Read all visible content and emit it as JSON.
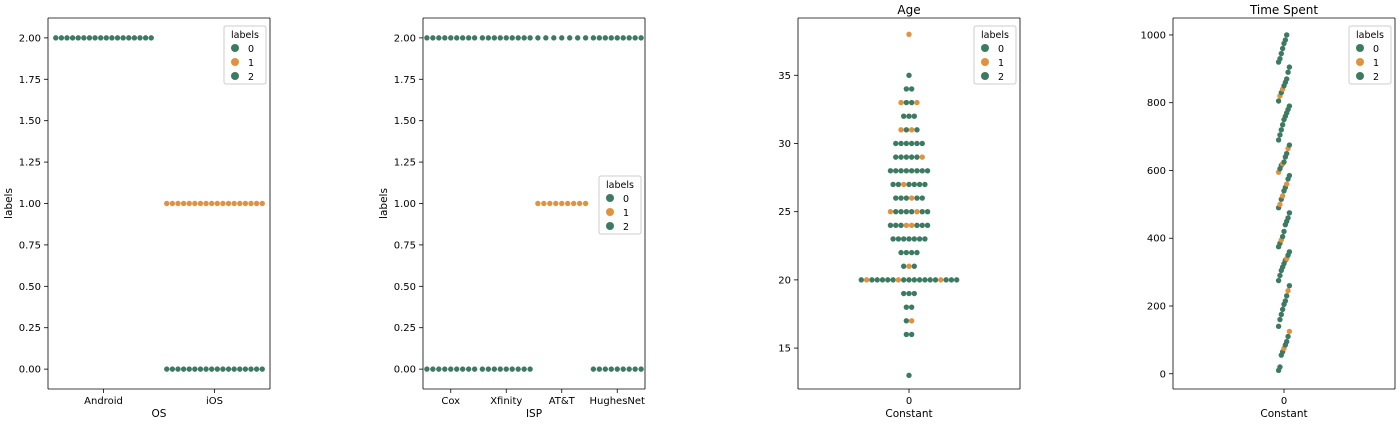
{
  "colors": {
    "label_0": "#3d7a62",
    "label_1": "#e0923e",
    "label_2": "#3d7a62",
    "axis": "#000000",
    "frame_border": "#cccccc"
  },
  "chart_data": [
    {
      "type": "scatter",
      "subtype": "swarm",
      "title": "",
      "xlabel": "OS",
      "ylabel": "labels",
      "categories": [
        "Android",
        "iOS"
      ],
      "yticks": [
        "0.00",
        "0.25",
        "0.50",
        "0.75",
        "1.00",
        "1.25",
        "1.50",
        "1.75",
        "2.00"
      ],
      "ylim": [
        -0.12,
        2.12
      ],
      "legend": {
        "title": "labels",
        "placement": "top-right",
        "entries": [
          "0",
          "1",
          "2"
        ]
      },
      "groups": [
        {
          "category": "Android",
          "label": "2",
          "y": 2.0,
          "count": 18
        },
        {
          "category": "iOS",
          "label": "1",
          "y": 1.0,
          "count": 18
        },
        {
          "category": "iOS",
          "label": "0",
          "y": 0.0,
          "count": 18
        }
      ]
    },
    {
      "type": "scatter",
      "subtype": "swarm",
      "title": "",
      "xlabel": "ISP",
      "ylabel": "labels",
      "categories": [
        "Cox",
        "Xfinity",
        "AT&T",
        "HughesNet"
      ],
      "yticks": [
        "0.00",
        "0.25",
        "0.50",
        "0.75",
        "1.00",
        "1.25",
        "1.50",
        "1.75",
        "2.00"
      ],
      "ylim": [
        -0.12,
        2.12
      ],
      "legend": {
        "title": "labels",
        "placement": "center-right",
        "entries": [
          "0",
          "1",
          "2"
        ]
      },
      "groups": [
        {
          "category": "Cox",
          "label": "2",
          "y": 2.0,
          "count": 9
        },
        {
          "category": "Cox",
          "label": "0",
          "y": 0.0,
          "count": 9
        },
        {
          "category": "Xfinity",
          "label": "2",
          "y": 2.0,
          "count": 9
        },
        {
          "category": "Xfinity",
          "label": "0",
          "y": 0.0,
          "count": 9
        },
        {
          "category": "AT&T",
          "label": "2",
          "y": 2.0,
          "count": 7
        },
        {
          "category": "AT&T",
          "label": "1",
          "y": 1.0,
          "count": 9
        },
        {
          "category": "HughesNet",
          "label": "2",
          "y": 2.0,
          "count": 9
        },
        {
          "category": "HughesNet",
          "label": "0",
          "y": 0.0,
          "count": 9
        }
      ]
    },
    {
      "type": "scatter",
      "subtype": "swarm",
      "title": "Age",
      "xlabel": "Constant",
      "ylabel": "",
      "categories": [
        "0"
      ],
      "yticks": [
        15,
        20,
        25,
        30,
        35
      ],
      "ylim": [
        12,
        39.2
      ],
      "legend": {
        "title": "labels",
        "placement": "top-right",
        "entries": [
          "0",
          "1",
          "2"
        ]
      },
      "rows": [
        {
          "y": 38,
          "labels": [
            "1"
          ]
        },
        {
          "y": 35,
          "labels": [
            "2"
          ]
        },
        {
          "y": 34,
          "labels": [
            "2",
            "2"
          ]
        },
        {
          "y": 33,
          "labels": [
            "1",
            "2",
            "2",
            "1"
          ]
        },
        {
          "y": 32,
          "labels": [
            "2",
            "2",
            "2"
          ]
        },
        {
          "y": 31,
          "labels": [
            "1",
            "2",
            "1",
            "2"
          ]
        },
        {
          "y": 30,
          "labels": [
            "2",
            "2",
            "2",
            "2",
            "2",
            "2"
          ]
        },
        {
          "y": 29,
          "labels": [
            "2",
            "2",
            "2",
            "2",
            "2",
            "1"
          ]
        },
        {
          "y": 28,
          "labels": [
            "2",
            "2",
            "2",
            "2",
            "2",
            "2",
            "2",
            "2"
          ]
        },
        {
          "y": 27,
          "labels": [
            "2",
            "2",
            "1",
            "2",
            "2",
            "2",
            "2"
          ]
        },
        {
          "y": 26,
          "labels": [
            "2",
            "2",
            "2",
            "1",
            "2",
            "2"
          ]
        },
        {
          "y": 25,
          "labels": [
            "1",
            "2",
            "2",
            "2",
            "2",
            "1",
            "2",
            "2"
          ]
        },
        {
          "y": 24,
          "labels": [
            "2",
            "2",
            "2",
            "1",
            "1",
            "2",
            "2",
            "2"
          ]
        },
        {
          "y": 23,
          "labels": [
            "2",
            "2",
            "2",
            "2",
            "2",
            "2",
            "2"
          ]
        },
        {
          "y": 22,
          "labels": [
            "2",
            "2",
            "2",
            "2"
          ]
        },
        {
          "y": 21,
          "labels": [
            "2",
            "1",
            "2"
          ]
        },
        {
          "y": 20,
          "labels": [
            "2",
            "1",
            "2",
            "2",
            "2",
            "2",
            "2",
            "1",
            "2",
            "2",
            "2",
            "2",
            "2",
            "2",
            "2",
            "1",
            "2",
            "2",
            "2"
          ]
        },
        {
          "y": 19,
          "labels": [
            "2",
            "2",
            "2"
          ]
        },
        {
          "y": 18,
          "labels": [
            "2",
            "2"
          ]
        },
        {
          "y": 17,
          "labels": [
            "2",
            "1"
          ]
        },
        {
          "y": 16,
          "labels": [
            "2",
            "2"
          ]
        },
        {
          "y": 13,
          "labels": [
            "2"
          ]
        }
      ]
    },
    {
      "type": "scatter",
      "subtype": "swarm",
      "title": "Time Spent",
      "xlabel": "Constant",
      "ylabel": "",
      "categories": [
        "0"
      ],
      "yticks": [
        0,
        200,
        400,
        600,
        800,
        1000
      ],
      "ylim": [
        -45,
        1050
      ],
      "legend": {
        "title": "labels",
        "placement": "top-right",
        "entries": [
          "0",
          "1",
          "2"
        ]
      },
      "points": [
        {
          "y": 10,
          "label": "2"
        },
        {
          "y": 20,
          "label": "2"
        },
        {
          "y": 55,
          "label": "2"
        },
        {
          "y": 65,
          "label": "2"
        },
        {
          "y": 75,
          "label": "1"
        },
        {
          "y": 85,
          "label": "2"
        },
        {
          "y": 95,
          "label": "2"
        },
        {
          "y": 110,
          "label": "2"
        },
        {
          "y": 125,
          "label": "1"
        },
        {
          "y": 140,
          "label": "2"
        },
        {
          "y": 160,
          "label": "2"
        },
        {
          "y": 175,
          "label": "2"
        },
        {
          "y": 190,
          "label": "2"
        },
        {
          "y": 205,
          "label": "2"
        },
        {
          "y": 215,
          "label": "2"
        },
        {
          "y": 230,
          "label": "2"
        },
        {
          "y": 245,
          "label": "1"
        },
        {
          "y": 260,
          "label": "2"
        },
        {
          "y": 275,
          "label": "2"
        },
        {
          "y": 290,
          "label": "2"
        },
        {
          "y": 305,
          "label": "2"
        },
        {
          "y": 315,
          "label": "2"
        },
        {
          "y": 325,
          "label": "2"
        },
        {
          "y": 335,
          "label": "2"
        },
        {
          "y": 340,
          "label": "1"
        },
        {
          "y": 350,
          "label": "2"
        },
        {
          "y": 360,
          "label": "2"
        },
        {
          "y": 375,
          "label": "2"
        },
        {
          "y": 385,
          "label": "2"
        },
        {
          "y": 395,
          "label": "1"
        },
        {
          "y": 405,
          "label": "2"
        },
        {
          "y": 420,
          "label": "2"
        },
        {
          "y": 440,
          "label": "2"
        },
        {
          "y": 450,
          "label": "2"
        },
        {
          "y": 460,
          "label": "2"
        },
        {
          "y": 475,
          "label": "2"
        },
        {
          "y": 490,
          "label": "2"
        },
        {
          "y": 500,
          "label": "1"
        },
        {
          "y": 515,
          "label": "2"
        },
        {
          "y": 525,
          "label": "1"
        },
        {
          "y": 540,
          "label": "2"
        },
        {
          "y": 550,
          "label": "2"
        },
        {
          "y": 560,
          "label": "1"
        },
        {
          "y": 575,
          "label": "2"
        },
        {
          "y": 585,
          "label": "2"
        },
        {
          "y": 595,
          "label": "1"
        },
        {
          "y": 605,
          "label": "2"
        },
        {
          "y": 615,
          "label": "2"
        },
        {
          "y": 620,
          "label": "1"
        },
        {
          "y": 625,
          "label": "2"
        },
        {
          "y": 640,
          "label": "2"
        },
        {
          "y": 650,
          "label": "2"
        },
        {
          "y": 665,
          "label": "1"
        },
        {
          "y": 675,
          "label": "2"
        },
        {
          "y": 690,
          "label": "2"
        },
        {
          "y": 705,
          "label": "2"
        },
        {
          "y": 720,
          "label": "2"
        },
        {
          "y": 735,
          "label": "2"
        },
        {
          "y": 750,
          "label": "2"
        },
        {
          "y": 760,
          "label": "2"
        },
        {
          "y": 770,
          "label": "2"
        },
        {
          "y": 780,
          "label": "2"
        },
        {
          "y": 790,
          "label": "2"
        },
        {
          "y": 805,
          "label": "2"
        },
        {
          "y": 820,
          "label": "1"
        },
        {
          "y": 830,
          "label": "2"
        },
        {
          "y": 840,
          "label": "1"
        },
        {
          "y": 850,
          "label": "2"
        },
        {
          "y": 860,
          "label": "2"
        },
        {
          "y": 870,
          "label": "2"
        },
        {
          "y": 890,
          "label": "2"
        },
        {
          "y": 905,
          "label": "2"
        },
        {
          "y": 920,
          "label": "2"
        },
        {
          "y": 930,
          "label": "2"
        },
        {
          "y": 945,
          "label": "2"
        },
        {
          "y": 960,
          "label": "2"
        },
        {
          "y": 975,
          "label": "2"
        },
        {
          "y": 985,
          "label": "2"
        },
        {
          "y": 1000,
          "label": "2"
        }
      ]
    }
  ]
}
